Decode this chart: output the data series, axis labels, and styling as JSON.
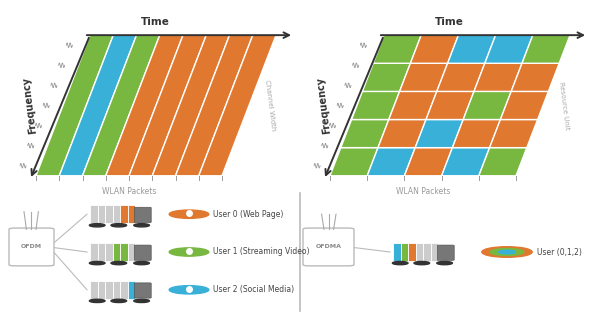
{
  "bg_top": "#ffffff",
  "bg_bottom": "#dcdcdc",
  "orange": "#e07830",
  "blue": "#38b0d8",
  "green": "#78b840",
  "freq_label": "Frequency",
  "time_label": "Time",
  "wlan_label": "WLAN Packets",
  "channel_width_label": "Channel Width",
  "resource_unit_label": "Resource Unit",
  "user0_label": "User 0 (Web Page)",
  "user1_label": "User 1 (Streaming Video)",
  "user2_label": "User 2 (Social Media)",
  "user_multi_label": "User (0,1,2)",
  "ofdm_label": "OFDM",
  "ofdma_label": "OFDMA",
  "ofdm_stripe_colors": [
    "#78b840",
    "#38b0d8",
    "#78b840",
    "#e07830",
    "#e07830",
    "#e07830",
    "#e07830",
    "#e07830"
  ],
  "ofdma_grid": [
    [
      "#78b840",
      "#38b0d8",
      "#e07830",
      "#38b0d8",
      "#78b840"
    ],
    [
      "#78b840",
      "#e07830",
      "#38b0d8",
      "#e07830",
      "#e07830"
    ],
    [
      "#78b840",
      "#e07830",
      "#e07830",
      "#78b840",
      "#e07830"
    ],
    [
      "#78b840",
      "#e07830",
      "#e07830",
      "#e07830",
      "#e07830"
    ],
    [
      "#78b840",
      "#e07830",
      "#38b0d8",
      "#38b0d8",
      "#78b840"
    ]
  ]
}
